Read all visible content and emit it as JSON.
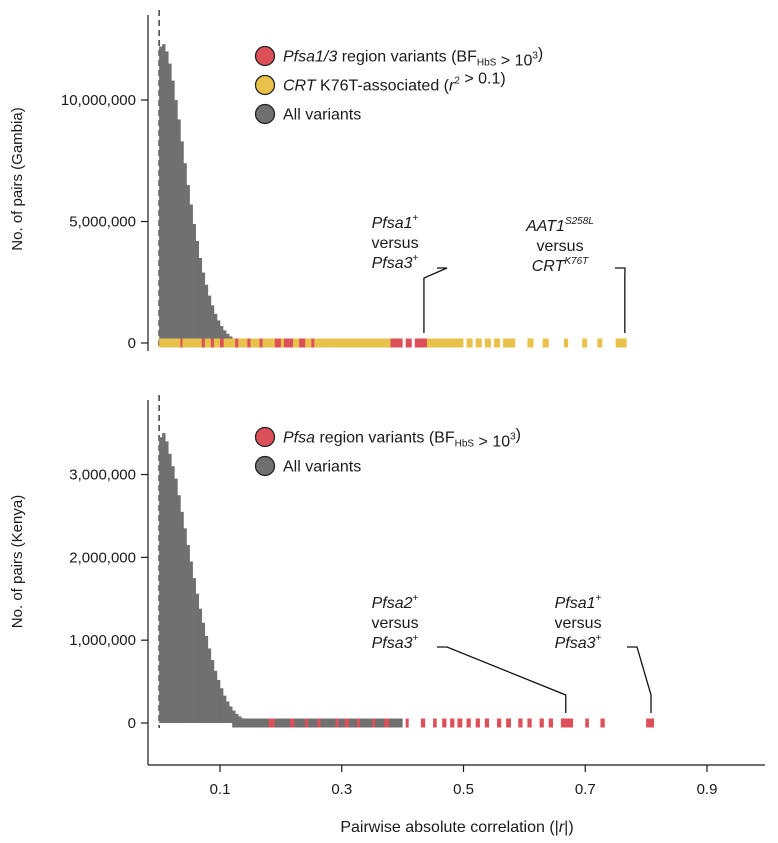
{
  "colors": {
    "histogram": "#707070",
    "gray_variant": "#707070",
    "red_variant": "#dc505a",
    "yellow_variant": "#e8c24a",
    "axis": "#1a1a1a"
  },
  "x_axis": {
    "label_pre": "Pairwise absolute correlation (|",
    "label_var": "r",
    "label_post": "|)",
    "ticks": [
      "0.1",
      "0.3",
      "0.5",
      "0.7",
      "0.9"
    ],
    "tick_values": [
      0.1,
      0.3,
      0.5,
      0.7,
      0.9
    ],
    "range": [
      -0.02,
      1.0
    ]
  },
  "chart_data": [
    {
      "type": "bar",
      "ylabel": "No. of pairs (Gambia)",
      "y_ticks": [
        "0",
        "5,000,000",
        "10,000,000"
      ],
      "y_tick_values": [
        0,
        5000000,
        10000000
      ],
      "ylim": [
        0,
        13500000
      ],
      "legend": [
        {
          "key": "red",
          "italic": "Pfsa1/3",
          "text": " region variants (BF",
          "sub": "HbS",
          "post": " > 10",
          "sup": "3",
          "end": ")"
        },
        {
          "key": "yellow",
          "italic": "CRT",
          "text": " K76T-associated (",
          "ital2": "r",
          "sup": "2",
          "end": " > 0.1)"
        },
        {
          "key": "gray",
          "text": "All variants"
        }
      ],
      "histogram": {
        "bin_width": 0.005,
        "x_start": 0.0,
        "counts": [
          12200000,
          12300000,
          12000000,
          11500000,
          10800000,
          10000000,
          9200000,
          8300000,
          7400000,
          6500000,
          5700000,
          4900000,
          4200000,
          3500000,
          2900000,
          2400000,
          1950000,
          1550000,
          1200000,
          930000,
          700000,
          520000,
          380000,
          270000,
          190000,
          130000,
          90000,
          60000,
          40000,
          25000,
          15000,
          9000,
          5000,
          3000,
          1500
        ]
      },
      "strip_segments": [
        {
          "variant": "yellow",
          "x": [
            0.0,
            0.28
          ]
        },
        {
          "variant": "red",
          "x": [
            0.035,
            0.038
          ]
        },
        {
          "variant": "red",
          "x": [
            0.07,
            0.075
          ]
        },
        {
          "variant": "red",
          "x": [
            0.085,
            0.09
          ]
        },
        {
          "variant": "red",
          "x": [
            0.1,
            0.106
          ]
        },
        {
          "variant": "red",
          "x": [
            0.125,
            0.13
          ]
        },
        {
          "variant": "red",
          "x": [
            0.145,
            0.15
          ]
        },
        {
          "variant": "red",
          "x": [
            0.165,
            0.17
          ]
        },
        {
          "variant": "red",
          "x": [
            0.19,
            0.2
          ]
        },
        {
          "variant": "red",
          "x": [
            0.205,
            0.22
          ]
        },
        {
          "variant": "red",
          "x": [
            0.23,
            0.24
          ]
        },
        {
          "variant": "red",
          "x": [
            0.25,
            0.255
          ]
        },
        {
          "variant": "yellow",
          "x": [
            0.28,
            0.38
          ]
        },
        {
          "variant": "red",
          "x": [
            0.38,
            0.4
          ]
        },
        {
          "variant": "red",
          "x": [
            0.405,
            0.415
          ]
        },
        {
          "variant": "red",
          "x": [
            0.42,
            0.44
          ]
        },
        {
          "variant": "yellow",
          "x": [
            0.44,
            0.5
          ]
        },
        {
          "variant": "yellow",
          "x": [
            0.505,
            0.515
          ]
        },
        {
          "variant": "yellow",
          "x": [
            0.52,
            0.53
          ]
        },
        {
          "variant": "yellow",
          "x": [
            0.535,
            0.545
          ]
        },
        {
          "variant": "yellow",
          "x": [
            0.55,
            0.56
          ]
        },
        {
          "variant": "yellow",
          "x": [
            0.565,
            0.585
          ]
        },
        {
          "variant": "yellow",
          "x": [
            0.605,
            0.615
          ]
        },
        {
          "variant": "yellow",
          "x": [
            0.63,
            0.64
          ]
        },
        {
          "variant": "yellow",
          "x": [
            0.665,
            0.672
          ]
        },
        {
          "variant": "yellow",
          "x": [
            0.695,
            0.703
          ]
        },
        {
          "variant": "yellow",
          "x": [
            0.72,
            0.728
          ]
        },
        {
          "variant": "yellow",
          "x": [
            0.75,
            0.768
          ]
        }
      ],
      "annotations": [
        {
          "lines": [
            {
              "italic": "Pfsa1",
              "sup": "+"
            },
            {
              "text": "versus"
            },
            {
              "italic": "Pfsa3",
              "sup": "+"
            }
          ],
          "target_x": 0.435
        },
        {
          "lines": [
            {
              "italic": "AAT1",
              "sup_i": "S258L"
            },
            {
              "text": "versus"
            },
            {
              "italic": "CRT",
              "sup_i": "K76T"
            }
          ],
          "target_x": 0.765
        }
      ]
    },
    {
      "type": "bar",
      "ylabel": "No. of pairs (Kenya)",
      "y_ticks": [
        "0",
        "1,000,000",
        "2,000,000",
        "3,000,000"
      ],
      "y_tick_values": [
        0,
        1000000,
        2000000,
        3000000
      ],
      "ylim": [
        0,
        3900000
      ],
      "legend": [
        {
          "key": "red",
          "italic": "Pfsa",
          "text": " region variants (BF",
          "sub": "HbS",
          "post": " > 10",
          "sup": "3",
          "end": ")"
        },
        {
          "key": "gray",
          "text": "All variants"
        }
      ],
      "histogram": {
        "bin_width": 0.005,
        "x_start": 0.0,
        "counts": [
          3450000,
          3500000,
          3400000,
          3250000,
          3100000,
          2950000,
          2750000,
          2550000,
          2350000,
          2150000,
          1950000,
          1750000,
          1560000,
          1380000,
          1210000,
          1050000,
          900000,
          760000,
          630000,
          520000,
          420000,
          330000,
          260000,
          200000,
          150000,
          110000,
          80000,
          56000,
          39000,
          27000,
          18000,
          12000,
          8000,
          5000,
          3000,
          2000,
          1200,
          800
        ]
      },
      "strip_segments": [
        {
          "variant": "gray",
          "x": [
            0.12,
            0.4
          ]
        },
        {
          "variant": "red",
          "x": [
            0.18,
            0.19
          ]
        },
        {
          "variant": "red",
          "x": [
            0.215,
            0.222
          ]
        },
        {
          "variant": "red",
          "x": [
            0.24,
            0.245
          ]
        },
        {
          "variant": "red",
          "x": [
            0.26,
            0.265
          ]
        },
        {
          "variant": "red",
          "x": [
            0.29,
            0.295
          ]
        },
        {
          "variant": "red",
          "x": [
            0.305,
            0.312
          ]
        },
        {
          "variant": "red",
          "x": [
            0.325,
            0.33
          ]
        },
        {
          "variant": "red",
          "x": [
            0.35,
            0.355
          ]
        },
        {
          "variant": "red",
          "x": [
            0.37,
            0.378
          ]
        },
        {
          "variant": "red",
          "x": [
            0.405,
            0.41
          ]
        },
        {
          "variant": "red",
          "x": [
            0.43,
            0.437
          ]
        },
        {
          "variant": "red",
          "x": [
            0.45,
            0.456
          ]
        },
        {
          "variant": "red",
          "x": [
            0.465,
            0.472
          ]
        },
        {
          "variant": "red",
          "x": [
            0.478,
            0.485
          ]
        },
        {
          "variant": "red",
          "x": [
            0.49,
            0.498
          ]
        },
        {
          "variant": "red",
          "x": [
            0.505,
            0.512
          ]
        },
        {
          "variant": "red",
          "x": [
            0.52,
            0.527
          ]
        },
        {
          "variant": "red",
          "x": [
            0.535,
            0.542
          ]
        },
        {
          "variant": "red",
          "x": [
            0.555,
            0.562
          ]
        },
        {
          "variant": "red",
          "x": [
            0.57,
            0.578
          ]
        },
        {
          "variant": "red",
          "x": [
            0.59,
            0.597
          ]
        },
        {
          "variant": "red",
          "x": [
            0.605,
            0.612
          ]
        },
        {
          "variant": "red",
          "x": [
            0.625,
            0.632
          ]
        },
        {
          "variant": "red",
          "x": [
            0.64,
            0.647
          ]
        },
        {
          "variant": "red",
          "x": [
            0.66,
            0.68
          ]
        },
        {
          "variant": "red",
          "x": [
            0.7,
            0.706
          ]
        },
        {
          "variant": "red",
          "x": [
            0.725,
            0.732
          ]
        },
        {
          "variant": "red",
          "x": [
            0.8,
            0.813
          ]
        }
      ],
      "annotations": [
        {
          "lines": [
            {
              "italic": "Pfsa2",
              "sup": "+"
            },
            {
              "text": "versus"
            },
            {
              "italic": "Pfsa3",
              "sup": "+"
            }
          ],
          "target_x": 0.668
        },
        {
          "lines": [
            {
              "italic": "Pfsa1",
              "sup": "+"
            },
            {
              "text": "versus"
            },
            {
              "italic": "Pfsa3",
              "sup": "+"
            }
          ],
          "target_x": 0.808
        }
      ]
    }
  ]
}
